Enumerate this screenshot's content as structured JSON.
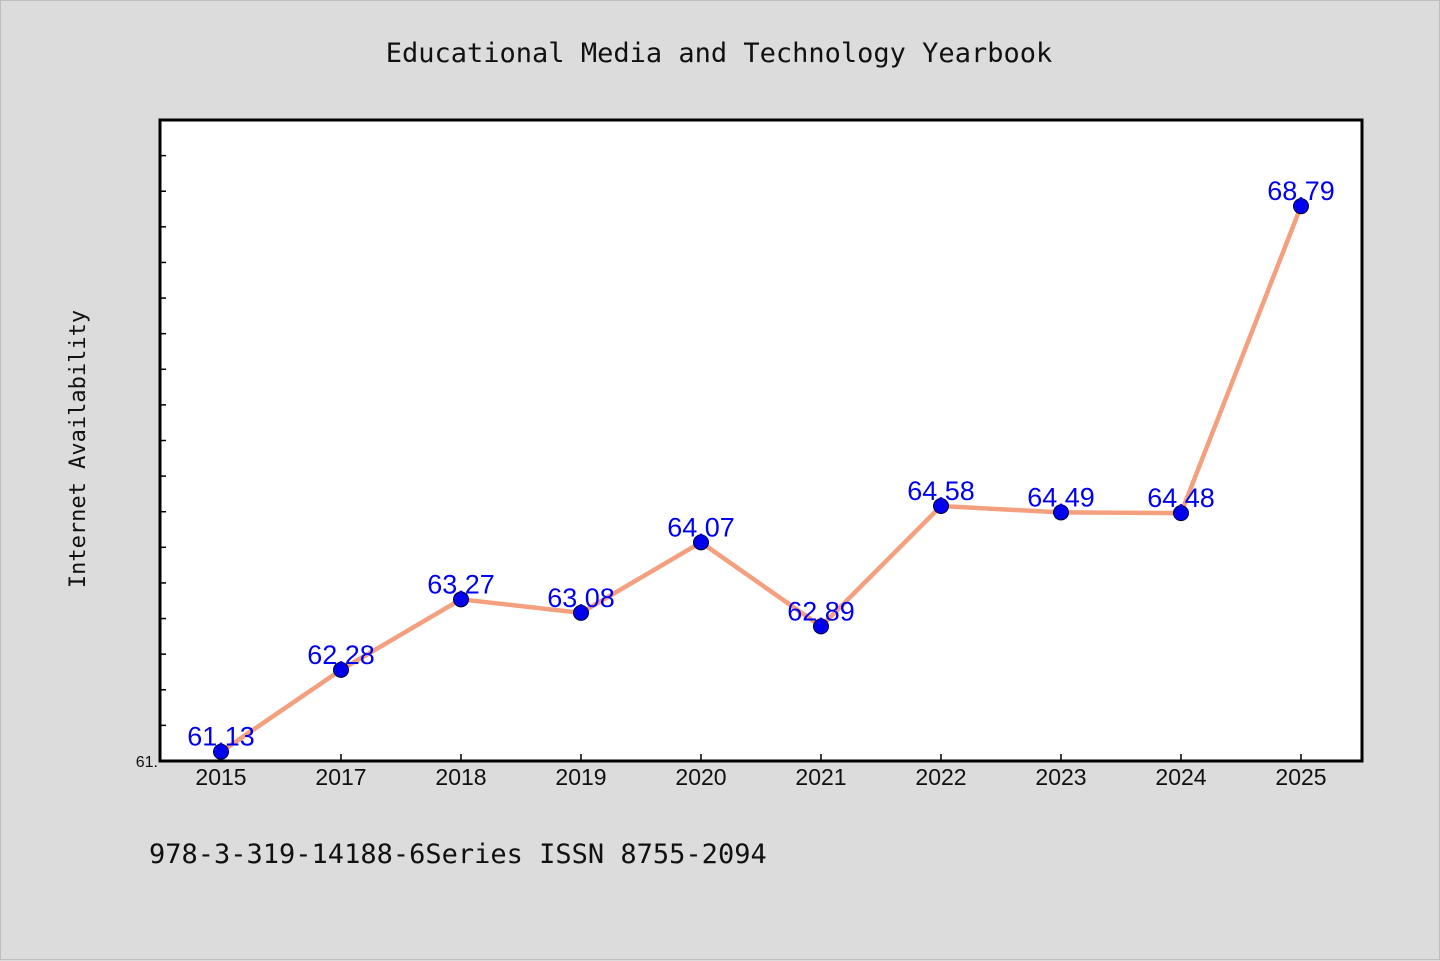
{
  "chart_data": {
    "type": "line",
    "title": "Educational Media and Technology Yearbook",
    "xlabel": "",
    "ylabel": "Internet Availability",
    "categories": [
      "2015",
      "2017",
      "2018",
      "2019",
      "2020",
      "2021",
      "2022",
      "2023",
      "2024",
      "2025"
    ],
    "series": [
      {
        "values": [
          61.13,
          62.28,
          63.27,
          63.08,
          64.07,
          62.89,
          64.58,
          64.49,
          64.48,
          68.79
        ],
        "data_labels": [
          "61.13",
          "62.28",
          "63.27",
          "63.08",
          "64.07",
          "62.89",
          "64.58",
          "64.49",
          "64.48",
          "68.79"
        ]
      }
    ],
    "ylim": [
      61.0,
      70.0
    ],
    "y_tick_labels": [
      "61."
    ],
    "grid": false,
    "line_color": "#f4a07f",
    "marker_color": "#0000ee",
    "label_color": "#0000ee"
  },
  "footer": {
    "text": "978-3-319-14188-6Series ISSN 8755-2094"
  },
  "colors": {
    "background": "#dcdcdc",
    "plot_background": "#ffffff",
    "frame": "#000000"
  }
}
